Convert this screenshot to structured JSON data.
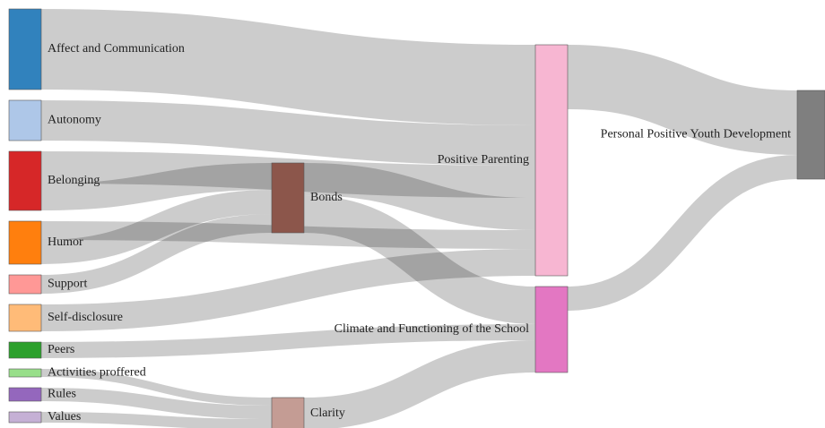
{
  "chart_data": {
    "type": "sankey",
    "nodes": [
      {
        "name": "Affect and Communication",
        "color": "#3182bd"
      },
      {
        "name": "Autonomy",
        "color": "#aec7e8"
      },
      {
        "name": "Belonging",
        "color": "#d62728"
      },
      {
        "name": "Humor",
        "color": "#ff7f0e"
      },
      {
        "name": "Support",
        "color": "#ff9896"
      },
      {
        "name": "Self-disclosure",
        "color": "#ffbb78"
      },
      {
        "name": "Peers",
        "color": "#2ca02c"
      },
      {
        "name": "Activities proffered",
        "color": "#98df8a"
      },
      {
        "name": "Rules",
        "color": "#9467bd"
      },
      {
        "name": "Values",
        "color": "#c5b0d5"
      },
      {
        "name": "Bonds",
        "color": "#8c564b"
      },
      {
        "name": "Clarity",
        "color": "#c49c94"
      },
      {
        "name": "Positive Parenting",
        "color": "#f7b6d2"
      },
      {
        "name": "Climate and Functioning of the School",
        "color": "#e377c2"
      },
      {
        "name": "Personal Positive Youth Development",
        "color": "#7f7f7f"
      }
    ],
    "links": [
      {
        "source": "Affect and Communication",
        "target": "Positive Parenting",
        "value": 30
      },
      {
        "source": "Autonomy",
        "target": "Positive Parenting",
        "value": 15
      },
      {
        "source": "Belonging",
        "target": "Positive Parenting",
        "value": 12
      },
      {
        "source": "Belonging",
        "target": "Bonds",
        "value": 10
      },
      {
        "source": "Humor",
        "target": "Bonds",
        "value": 9
      },
      {
        "source": "Humor",
        "target": "Positive Parenting",
        "value": 7
      },
      {
        "source": "Support",
        "target": "Bonds",
        "value": 7
      },
      {
        "source": "Self-disclosure",
        "target": "Positive Parenting",
        "value": 10
      },
      {
        "source": "Peers",
        "target": "Climate and Functioning of the School",
        "value": 6
      },
      {
        "source": "Activities proffered",
        "target": "Clarity",
        "value": 3
      },
      {
        "source": "Rules",
        "target": "Clarity",
        "value": 5
      },
      {
        "source": "Values",
        "target": "Clarity",
        "value": 4
      },
      {
        "source": "Bonds",
        "target": "Positive Parenting",
        "value": 12
      },
      {
        "source": "Bonds",
        "target": "Climate and Functioning of the School",
        "value": 14
      },
      {
        "source": "Clarity",
        "target": "Climate and Functioning of the School",
        "value": 12
      },
      {
        "source": "Positive Parenting",
        "target": "Personal Positive Youth Development",
        "value": 24
      },
      {
        "source": "Climate and Functioning of the School",
        "target": "Personal Positive Youth Development",
        "value": 9
      }
    ]
  }
}
